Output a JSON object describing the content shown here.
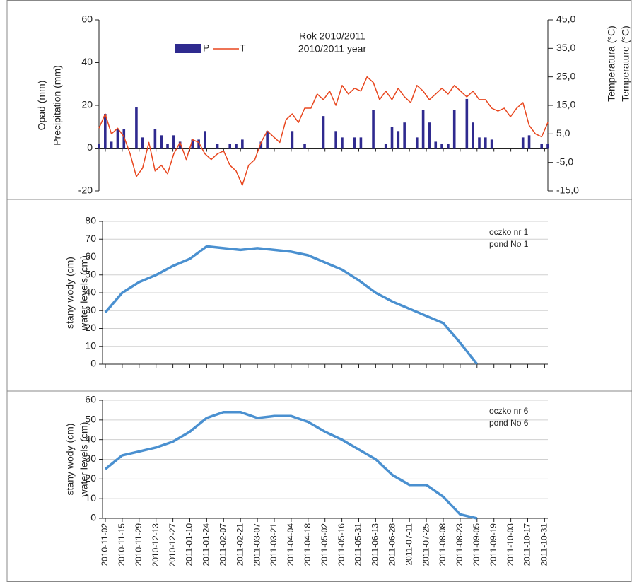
{
  "chart_data": [
    {
      "type": "combo",
      "title": [
        "Rok 2010/2011",
        "2010/2011 year"
      ],
      "y_label": [
        "Opad (mm)",
        "Precipitation (mm)"
      ],
      "y2_label": [
        "Temperatura (°C)",
        "Temperature (°C)"
      ],
      "categories": [
        null,
        null,
        null,
        null,
        null,
        null,
        null,
        null,
        null,
        null,
        null,
        null,
        null,
        null,
        null,
        null,
        null,
        null,
        null,
        null,
        null,
        null,
        null,
        null,
        null,
        null,
        null,
        null,
        null,
        null,
        null,
        null,
        null,
        null,
        null,
        null,
        null,
        null,
        null,
        null,
        null,
        null,
        null,
        null,
        null,
        null,
        null,
        null,
        null,
        null,
        null,
        null,
        null,
        null,
        null,
        null,
        null,
        null,
        null,
        null,
        null,
        null,
        null,
        null,
        null,
        null,
        null,
        null,
        null,
        null,
        null,
        null,
        null
      ],
      "series": [
        {
          "name": "P",
          "type": "bar",
          "color": "#2f2a8f",
          "values": [
            2,
            16,
            3,
            9,
            9,
            0,
            19,
            5,
            0,
            9,
            6,
            2,
            6,
            3,
            0,
            4,
            4,
            8,
            0,
            2,
            0,
            2,
            2,
            4,
            0,
            0,
            3,
            8,
            0,
            0,
            0,
            8,
            0,
            2,
            0,
            0,
            15,
            0,
            8,
            5,
            0,
            5,
            5,
            0,
            18,
            0,
            2,
            10,
            8,
            12,
            0,
            5,
            18,
            12,
            3,
            2,
            2,
            18,
            0,
            23,
            12,
            5,
            5,
            4,
            0,
            0,
            0,
            0,
            5,
            6,
            0,
            2,
            2
          ]
        },
        {
          "name": "T",
          "type": "line",
          "axis": "y2",
          "color": "#e8461e",
          "values": [
            7,
            12,
            5,
            7,
            4,
            -2,
            -10,
            -7,
            2,
            -8,
            -6,
            -9,
            -2,
            2,
            -4,
            3,
            2,
            -2,
            -4,
            -2,
            -1,
            -6,
            -8,
            -13,
            -6,
            -4,
            2,
            6,
            4,
            2,
            10,
            12,
            9,
            14,
            14,
            19,
            17,
            20,
            15,
            22,
            19,
            21,
            20,
            25,
            23,
            17,
            20,
            17,
            21,
            18,
            16,
            22,
            20,
            17,
            19,
            21,
            19,
            22,
            20,
            18,
            20,
            17,
            17,
            14,
            13,
            14,
            11,
            14,
            16,
            8,
            5,
            4,
            9
          ]
        }
      ],
      "ylim": [
        -20,
        60
      ],
      "yticks": [
        -20,
        0,
        20,
        40,
        60
      ],
      "y2lim": [
        -15,
        45
      ],
      "y2ticks": [
        {
          "value": -15,
          "label": "-15,0"
        },
        {
          "value": -5,
          "label": "-5,0"
        },
        {
          "value": 5,
          "label": "5,0"
        },
        {
          "value": 15,
          "label": "15,0"
        },
        {
          "value": 25,
          "label": "25,0"
        },
        {
          "value": 35,
          "label": "35,0"
        },
        {
          "value": 45,
          "label": "45,0"
        }
      ],
      "grid": false
    },
    {
      "type": "line",
      "annotation": [
        "oczko nr 1",
        "pond No 1"
      ],
      "y_label": [
        "stany wody (cm)",
        "water levels (cm)"
      ],
      "categories": [
        null,
        null,
        null,
        null,
        null,
        null,
        null,
        null,
        null,
        null,
        null,
        null,
        null,
        null,
        null,
        null,
        null,
        null,
        null,
        null,
        null,
        null,
        null,
        null,
        null,
        null,
        null
      ],
      "series": [
        {
          "color": "#4a90d0",
          "values": [
            29,
            40,
            46,
            50,
            55,
            59,
            66,
            65,
            64,
            65,
            64,
            63,
            61,
            57,
            53,
            47,
            40,
            35,
            31,
            27,
            23,
            12,
            0,
            null,
            null,
            null,
            null
          ]
        }
      ],
      "ylim": [
        0,
        80
      ],
      "yticks": [
        0,
        10,
        20,
        30,
        40,
        50,
        60,
        70,
        80
      ],
      "grid": true
    },
    {
      "type": "line",
      "annotation": [
        "oczko nr 6",
        "pond No 6"
      ],
      "y_label": [
        "stany wody (cm)",
        "water levels (cm)"
      ],
      "categories": [
        "2010-11-02",
        "2010-11-15",
        "2010-11-29",
        "2010-12-13",
        "2010-12-27",
        "2011-01-10",
        "2011-01-24",
        "2011-02-07",
        "2011-02-21",
        "2011-03-07",
        "2011-03-21",
        "2011-04-04",
        "2011-04-18",
        "2011-05-02",
        "2011-05-16",
        "2011-05-31",
        "2011-06-13",
        "2011-06-28",
        "2011-07-11",
        "2011-07-25",
        "2011-08-08",
        "2011-08-23",
        "2011-09-05",
        "2011-09-19",
        "2011-10-03",
        "2011-10-17",
        "2011-10-31"
      ],
      "series": [
        {
          "color": "#4a90d0",
          "values": [
            25,
            32,
            34,
            36,
            39,
            44,
            51,
            54,
            54,
            51,
            52,
            52,
            49,
            44,
            40,
            35,
            30,
            22,
            17,
            17,
            11,
            2,
            0,
            null,
            null,
            null,
            null
          ]
        }
      ],
      "ylim": [
        0,
        60
      ],
      "yticks": [
        0,
        10,
        20,
        30,
        40,
        50,
        60
      ],
      "grid": true
    }
  ]
}
